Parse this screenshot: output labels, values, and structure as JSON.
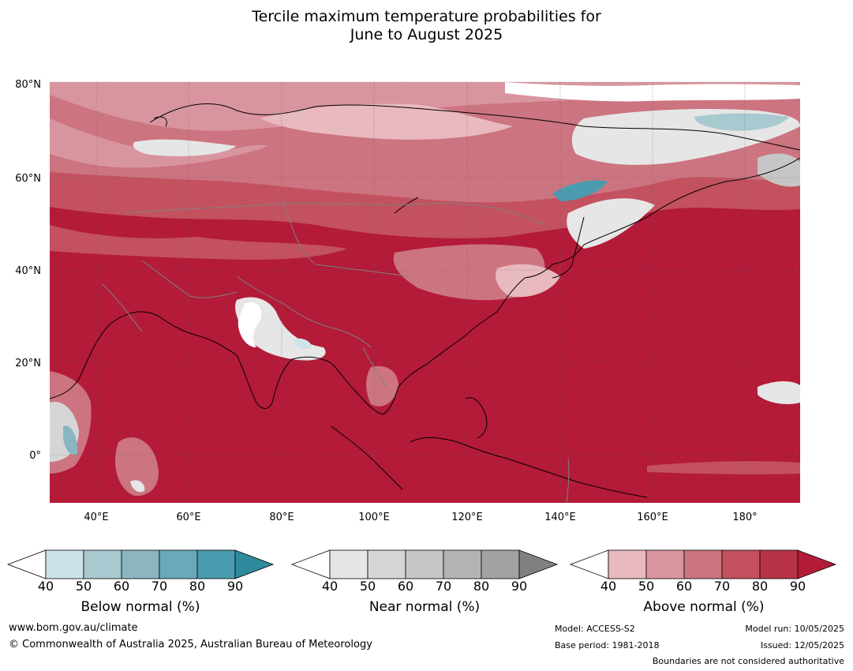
{
  "header": {
    "title_line1": "Tercile maximum temperature probabilities for",
    "title_line2": "June to August 2025"
  },
  "map": {
    "lat_labels": [
      "80°N",
      "60°N",
      "40°N",
      "20°N",
      "0°"
    ],
    "lon_labels": [
      "40°E",
      "60°E",
      "80°E",
      "100°E",
      "120°E",
      "140°E",
      "160°E",
      "180°"
    ],
    "colors": {
      "ocean_base": "#b31b38",
      "land_base": "#b92437",
      "coast": "#000000",
      "borders": "#808080",
      "grid": "#555555"
    }
  },
  "colorbars": [
    {
      "label": "Below normal (%)",
      "ticks": [
        "40",
        "50",
        "60",
        "70",
        "80",
        "90"
      ],
      "colors": [
        "#ffffff",
        "#cde3e9",
        "#a9c9d0",
        "#8ab5c1",
        "#6aaab8",
        "#4a9bae",
        "#2f8a9e"
      ]
    },
    {
      "label": "Near normal (%)",
      "ticks": [
        "40",
        "50",
        "60",
        "70",
        "80",
        "90"
      ],
      "colors": [
        "#ffffff",
        "#e6e6e6",
        "#d6d6d6",
        "#c6c6c6",
        "#b4b4b4",
        "#a2a2a2",
        "#808080"
      ]
    },
    {
      "label": "Above normal (%)",
      "ticks": [
        "40",
        "50",
        "60",
        "70",
        "80",
        "90"
      ],
      "colors": [
        "#ffffff",
        "#e8b9bf",
        "#d9959f",
        "#cc7480",
        "#c3515f",
        "#b83346",
        "#b31b38"
      ]
    }
  ],
  "footer": {
    "website": "www.bom.gov.au/climate",
    "copyright": "© Commonwealth of Australia 2025, Australian Bureau of Meteorology",
    "model": "Model: ACCESS-S2",
    "base_period": "Base period: 1981-2018",
    "model_run": "Model run: 10/05/2025",
    "issued": "Issued: 12/05/2025",
    "disclaimer": "Boundaries are not considered authoritative"
  }
}
